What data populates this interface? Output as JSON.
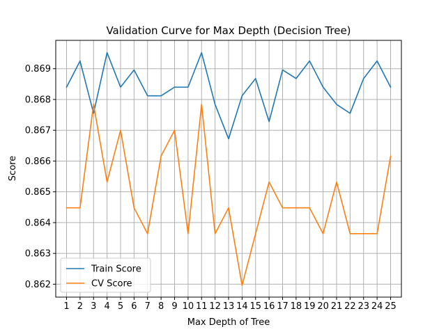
{
  "chart_data": {
    "type": "line",
    "title": "Validation Curve for Max Depth (Decision Tree)",
    "xlabel": "Max Depth of Tree",
    "ylabel": "Score",
    "x": [
      1,
      2,
      3,
      4,
      5,
      6,
      7,
      8,
      9,
      10,
      11,
      12,
      13,
      14,
      15,
      16,
      17,
      18,
      19,
      20,
      21,
      22,
      23,
      24,
      25
    ],
    "xlim": [
      0.2,
      25.8
    ],
    "ylim": [
      0.86158,
      0.86992
    ],
    "yticks": [
      0.862,
      0.863,
      0.864,
      0.865,
      0.866,
      0.867,
      0.868,
      0.869
    ],
    "ytick_labels": [
      "0.862",
      "0.863",
      "0.864",
      "0.865",
      "0.866",
      "0.867",
      "0.868",
      "0.869"
    ],
    "grid": true,
    "legend_position": "lower-left",
    "series": [
      {
        "name": "Train Score",
        "color": "#1f77b4",
        "values": [
          0.8684,
          0.86925,
          0.86755,
          0.86952,
          0.8684,
          0.86896,
          0.86812,
          0.86812,
          0.8684,
          0.8684,
          0.86952,
          0.86784,
          0.86672,
          0.86812,
          0.86868,
          0.86728,
          0.86896,
          0.86868,
          0.86925,
          0.8684,
          0.86784,
          0.86755,
          0.86868,
          0.86925,
          0.8684
        ]
      },
      {
        "name": "CV Score",
        "color": "#ff7f0e",
        "values": [
          0.86448,
          0.86448,
          0.86784,
          0.86532,
          0.867,
          0.86448,
          0.86364,
          0.86616,
          0.867,
          0.86364,
          0.86784,
          0.86364,
          0.86448,
          0.86196,
          0.86364,
          0.86532,
          0.86448,
          0.86448,
          0.86448,
          0.86364,
          0.86532,
          0.86364,
          0.86364,
          0.86364,
          0.86616
        ]
      }
    ]
  }
}
